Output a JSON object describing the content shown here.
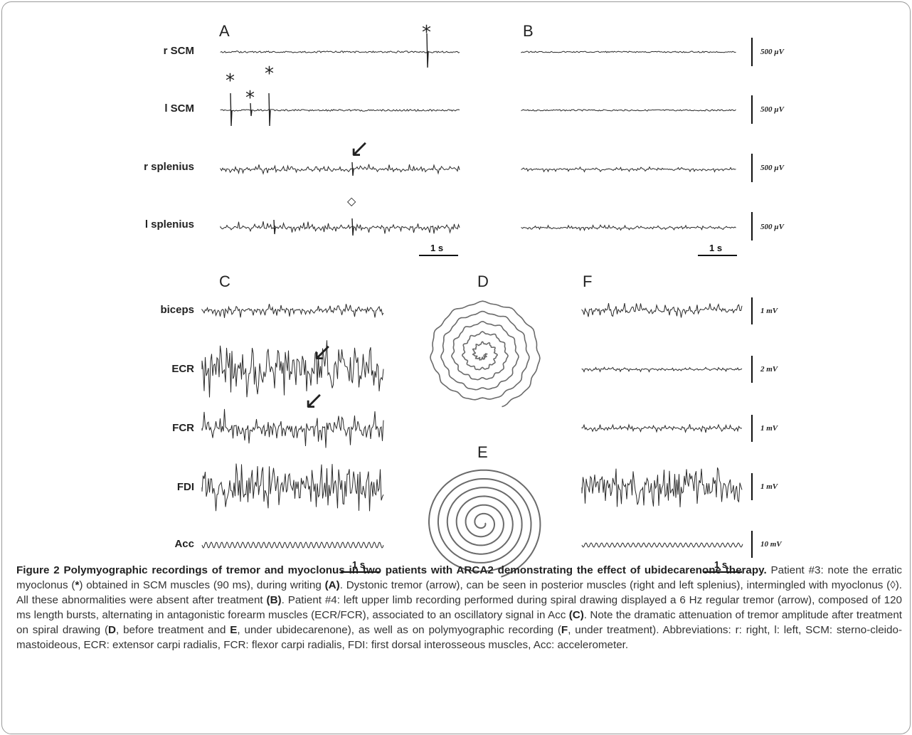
{
  "panels": {
    "A": "A",
    "B": "B",
    "C": "C",
    "D": "D",
    "E": "E",
    "F": "F"
  },
  "rows_top": [
    {
      "label": "r SCM",
      "unit": "500 µV"
    },
    {
      "label": "l SCM",
      "unit": "500 µV"
    },
    {
      "label": "r splenius",
      "unit": "500 µV"
    },
    {
      "label": "l splenius",
      "unit": "500 µV"
    }
  ],
  "rows_bottom": [
    {
      "label": "biceps",
      "unit": "1 mV"
    },
    {
      "label": "ECR",
      "unit": "2 mV"
    },
    {
      "label": "FCR",
      "unit": "1 mV"
    },
    {
      "label": "FDI",
      "unit": "1 mV"
    },
    {
      "label": "Acc",
      "unit": "10 mV"
    }
  ],
  "timescale": "1 s",
  "markers": {
    "asterisk": "*",
    "lozenge": "◇",
    "arrow": "↙"
  },
  "caption": {
    "title": "Figure 2 Polymyographic recordings of tremor and myoclonus in two patients with ARCA2 demonstrating the effect of ubidecarenone therapy.",
    "s1": " Patient #3: note the erratic myoclonus (",
    "s1b": "*",
    "s2": ") obtained in SCM muscles (90 ms), during writing ",
    "A": "(A)",
    "s3": ". Dystonic tremor (arrow), can be seen in posterior muscles (right and left splenius), intermingled with myoclonus (◊). All these abnormalities were absent after treatment ",
    "B": "(B)",
    "s4": ". Patient #4: left upper limb recording performed during spiral drawing displayed a 6 Hz regular tremor (arrow), composed of 120 ms length bursts, alternating in antagonistic forearm muscles (ECR/FCR), associated to an oscillatory signal in Acc ",
    "C": "(C)",
    "s5": ". Note the dramatic attenuation of tremor amplitude after treatment on spiral drawing (",
    "D": "D",
    "s6": ", before treatment and ",
    "E": "E",
    "s7": ", under ubidecarenone), as well as on polymyographic recording (",
    "F": "F",
    "s8": ", under treatment). Abbreviations: r: right, l: left, SCM: sterno-cleido-mastoideous, ECR: extensor carpi radialis, FCR: flexor carpi radialis, FDI: first dorsal interosseous muscles, Acc: accelerometer."
  }
}
